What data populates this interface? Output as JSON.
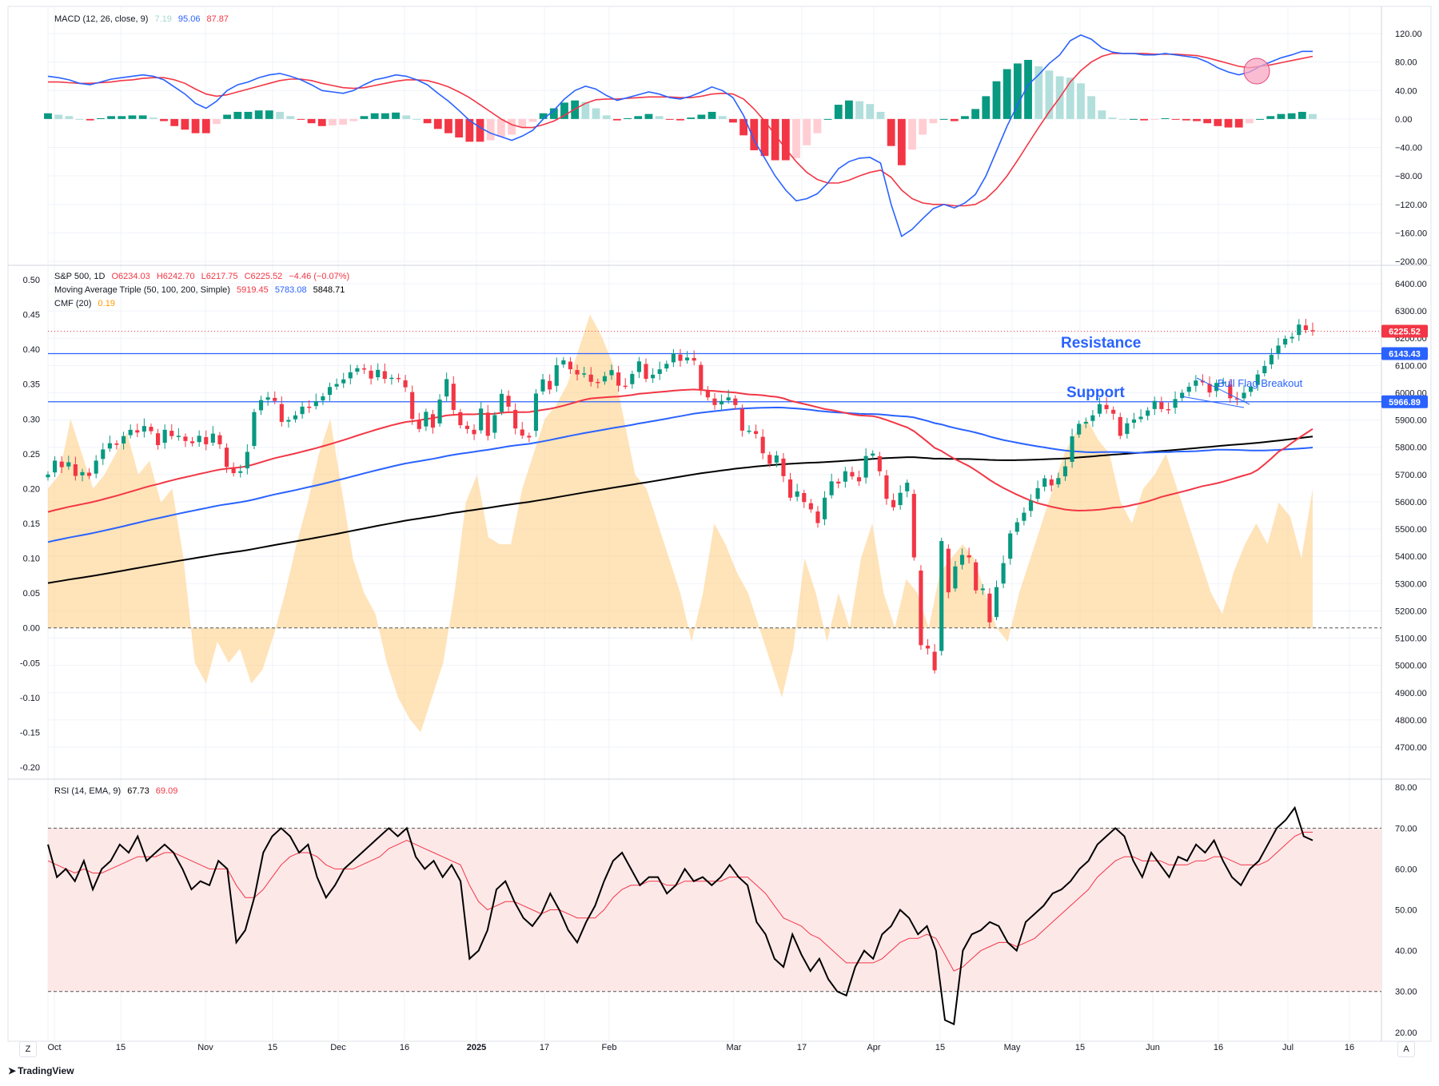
{
  "macd_panel": {
    "name": "MACD (12, 26, close, 9)",
    "histogram_value": "7.19",
    "macd_value": "95.06",
    "signal_value": "87.87",
    "axis_ticks": [
      "120.00",
      "80.00",
      "40.00",
      "0.00",
      "−40.00",
      "−80.00",
      "−120.00",
      "−160.00",
      "−200.00"
    ]
  },
  "price_panel": {
    "symbol_line": "S&P 500, 1D",
    "open": "O6234.03",
    "high": "H6242.70",
    "low": "L6217.75",
    "close": "C6225.52",
    "change": "−4.46 (−0.07%)",
    "ma_name": "Moving Average Triple (50, 100, 200, Simple)",
    "ma50": "5919.45",
    "ma100": "5783.08",
    "ma200": "5848.71",
    "cmf_name": "CMF (20)",
    "cmf_value": "0.19",
    "right_ticks": [
      "6400.00",
      "6300.00",
      "6200.00",
      "6100.00",
      "6000.00",
      "5900.00",
      "5800.00",
      "5700.00",
      "5600.00",
      "5500.00",
      "5400.00",
      "5300.00",
      "5200.00",
      "5100.00",
      "5000.00",
      "4900.00",
      "4800.00",
      "4700.00"
    ],
    "left_ticks": [
      "0.50",
      "0.45",
      "0.40",
      "0.35",
      "0.30",
      "0.25",
      "0.20",
      "0.15",
      "0.10",
      "0.05",
      "0.00",
      "-0.05",
      "-0.10",
      "-0.15",
      "-0.20"
    ],
    "price_badge": "6225.52",
    "resistance_badge": "6143.43",
    "support_badge": "5966.89",
    "resistance_label": "Resistance",
    "support_label": "Support",
    "flag_label": "Bull Flag Breakout"
  },
  "rsi_panel": {
    "name": "RSI (14, EMA, 9)",
    "rsi_value": "67.73",
    "ma_value": "69.09",
    "axis_ticks": [
      "80.00",
      "70.00",
      "60.00",
      "50.00",
      "40.00",
      "30.00",
      "20.00"
    ]
  },
  "date_axis": [
    "Oct",
    "15",
    "Nov",
    "15",
    "Dec",
    "16",
    "2025",
    "17",
    "Feb",
    "Mar",
    "17",
    "Apr",
    "15",
    "May",
    "15",
    "Jun",
    "16",
    "Jul",
    "16"
  ],
  "footer": {
    "brand": "TradingView",
    "left_button": "Z",
    "right_button": "A"
  },
  "colors": {
    "up": "#089981",
    "down": "#f23645",
    "ma50": "#f23645",
    "ma100": "#2962ff",
    "ma200": "#000000",
    "cmf_fill": "#ffcc80",
    "macd_line": "#2962ff",
    "signal_line": "#f23645",
    "rsi_line": "#000000",
    "rsi_ma": "#f23645",
    "rsi_band": "#fde8e8",
    "level_line": "#2962ff"
  },
  "chart_data": [
    {
      "type": "candlestick",
      "title": "S&P 500, 1D",
      "y_range": [
        4700,
        6400
      ],
      "levels": {
        "resistance": 6143.43,
        "support": 5966.89,
        "last": 6225.52
      },
      "closes": [
        5700,
        5751,
        5727,
        5745,
        5695,
        5709,
        5695,
        5751,
        5792,
        5815,
        5809,
        5841,
        5864,
        5854,
        5878,
        5859,
        5808,
        5864,
        5841,
        5842,
        5823,
        5815,
        5842,
        5811,
        5850,
        5811,
        5728,
        5705,
        5712,
        5783,
        5929,
        5973,
        5983,
        5970,
        5893,
        5900,
        5917,
        5949,
        5948,
        5969,
        5987,
        6021,
        6032,
        6049,
        6075,
        6090,
        6086,
        6052,
        6084,
        6051,
        6055,
        6050,
        6020,
        5904,
        5867,
        5930,
        5872,
        5975,
        6050,
        5937,
        5881,
        5867,
        5848,
        5942,
        5842,
        5918,
        5996,
        5949,
        5869,
        5843,
        5836,
        5997,
        6049,
        6012,
        6101,
        6119,
        6086,
        6067,
        6071,
        6040,
        6038,
        6061,
        6083,
        6026,
        6025,
        6069,
        6115,
        6051,
        6066,
        6086,
        6106,
        6144,
        6117,
        6129,
        6118,
        6013,
        5983,
        5955,
        5970,
        5983,
        5955,
        5861,
        5861,
        5849,
        5778,
        5739,
        5770,
        5694,
        5615,
        5638,
        5599,
        5572,
        5522,
        5615,
        5675,
        5667,
        5712,
        5693,
        5675,
        5768,
        5777,
        5712,
        5611,
        5580,
        5633,
        5670,
        5396,
        5074,
        5062,
        4982,
        5456,
        5268,
        5363,
        5405,
        5396,
        5275,
        5282,
        5158,
        5287,
        5375,
        5484,
        5525,
        5560,
        5604,
        5650,
        5686,
        5660,
        5687,
        5730,
        5840,
        5886,
        5893,
        5917,
        5958,
        5940,
        5923,
        5842,
        5888,
        5902,
        5912,
        5935,
        5970,
        5940,
        5939,
        5977,
        6000,
        6022,
        6045,
        6038,
        6001,
        6036,
        6039,
        5980,
        5976,
        6000,
        6022,
        6067,
        6098,
        6139,
        6173,
        6198,
        6205,
        6250,
        6230,
        6226
      ]
    },
    {
      "type": "line",
      "title": "MACD (12, 26, close, 9)",
      "y_range": [
        -200,
        120
      ],
      "series": [
        {
          "name": "MACD",
          "values": [
            60,
            58,
            55,
            50,
            48,
            52,
            56,
            58,
            60,
            62,
            60,
            55,
            45,
            35,
            22,
            15,
            25,
            40,
            48,
            52,
            58,
            62,
            64,
            60,
            55,
            48,
            40,
            38,
            36,
            40,
            48,
            55,
            58,
            62,
            60,
            55,
            48,
            36,
            25,
            12,
            -2,
            -12,
            -20,
            -25,
            -30,
            -24,
            -16,
            0,
            12,
            28,
            40,
            46,
            42,
            33,
            26,
            30,
            34,
            38,
            35,
            30,
            28,
            32,
            38,
            45,
            40,
            30,
            5,
            -30,
            -55,
            -80,
            -100,
            -115,
            -112,
            -105,
            -90,
            -70,
            -60,
            -55,
            -54,
            -62,
            -120,
            -165,
            -155,
            -140,
            -126,
            -120,
            -125,
            -118,
            -106,
            -80,
            -45,
            -10,
            20,
            48,
            62,
            78,
            90,
            110,
            118,
            112,
            100,
            94,
            92,
            92,
            90,
            90,
            92,
            90,
            88,
            86,
            80,
            72,
            66,
            62,
            66,
            74,
            80,
            86,
            90,
            95,
            95
          ]
        },
        {
          "name": "Signal",
          "values": [
            52,
            52,
            51,
            50,
            50,
            51,
            52,
            54,
            55,
            57,
            58,
            58,
            55,
            50,
            42,
            35,
            32,
            34,
            38,
            42,
            46,
            50,
            54,
            56,
            56,
            54,
            50,
            47,
            44,
            43,
            44,
            47,
            50,
            53,
            55,
            55,
            54,
            50,
            45,
            38,
            30,
            20,
            10,
            0,
            -8,
            -12,
            -12,
            -8,
            -3,
            5,
            14,
            22,
            27,
            28,
            28,
            29,
            30,
            31,
            31,
            31,
            30,
            30,
            32,
            35,
            36,
            35,
            28,
            14,
            -3,
            -22,
            -42,
            -60,
            -75,
            -85,
            -90,
            -90,
            -86,
            -80,
            -75,
            -72,
            -82,
            -100,
            -112,
            -118,
            -120,
            -120,
            -122,
            -122,
            -120,
            -112,
            -98,
            -80,
            -58,
            -35,
            -12,
            10,
            30,
            52,
            68,
            80,
            88,
            92,
            92,
            92,
            92,
            91,
            91,
            91,
            90,
            89,
            86,
            82,
            78,
            74,
            72,
            74,
            76,
            79,
            82,
            85,
            88
          ]
        }
      ]
    },
    {
      "type": "area",
      "title": "CMF (20)",
      "y_range": [
        -0.2,
        0.5
      ],
      "values": [
        0.2,
        0.22,
        0.3,
        0.25,
        0.2,
        0.22,
        0.25,
        0.28,
        0.22,
        0.24,
        0.18,
        0.2,
        0.1,
        -0.05,
        -0.08,
        -0.02,
        -0.05,
        -0.03,
        -0.08,
        -0.06,
        -0.01,
        0.05,
        0.12,
        0.18,
        0.25,
        0.3,
        0.2,
        0.1,
        0.05,
        0.02,
        -0.05,
        -0.1,
        -0.13,
        -0.15,
        -0.1,
        -0.05,
        0.05,
        0.18,
        0.22,
        0.13,
        0.12,
        0.12,
        0.2,
        0.25,
        0.3,
        0.32,
        0.35,
        0.4,
        0.45,
        0.42,
        0.38,
        0.3,
        0.22,
        0.2,
        0.15,
        0.1,
        0.05,
        -0.02,
        0.05,
        0.15,
        0.12,
        0.08,
        0.05,
        0.0,
        -0.05,
        -0.1,
        -0.03,
        0.1,
        0.05,
        -0.02,
        0.05,
        0.0,
        0.1,
        0.15,
        0.05,
        0.0,
        0.07,
        0.05,
        0.0,
        0.08,
        0.1,
        0.12,
        0.1,
        0.05,
        0.0,
        -0.02,
        0.05,
        0.1,
        0.15,
        0.2,
        0.25,
        0.28,
        0.3,
        0.27,
        0.25,
        0.18,
        0.15,
        0.2,
        0.22,
        0.25,
        0.2,
        0.15,
        0.1,
        0.05,
        0.02,
        0.08,
        0.12,
        0.15,
        0.12,
        0.18,
        0.16,
        0.1,
        0.2
      ]
    },
    {
      "type": "line",
      "title": "RSI (14, EMA, 9)",
      "y_range": [
        18,
        82
      ],
      "series": [
        {
          "name": "RSI",
          "values": [
            66,
            58,
            60,
            57,
            62,
            55,
            60,
            62,
            66,
            64,
            68,
            62,
            64,
            66,
            64,
            60,
            55,
            57,
            56,
            62,
            60,
            42,
            45,
            53,
            64,
            68,
            70,
            68,
            64,
            66,
            58,
            53,
            56,
            60,
            62,
            64,
            66,
            68,
            70,
            68,
            70,
            63,
            60,
            62,
            58,
            61,
            57,
            38,
            40,
            45,
            55,
            57,
            52,
            48,
            46,
            49,
            54,
            50,
            45,
            42,
            47,
            51,
            57,
            62,
            64,
            60,
            56,
            58,
            58,
            54,
            56,
            60,
            57,
            58,
            56,
            58,
            61,
            58,
            56,
            47,
            44,
            38,
            36,
            44,
            39,
            35,
            38,
            33,
            30,
            29,
            36,
            40,
            38,
            44,
            46,
            50,
            48,
            44,
            46,
            40,
            23,
            22,
            40,
            44,
            45,
            47,
            46,
            42,
            40,
            47,
            49,
            51,
            54,
            55,
            57,
            60,
            62,
            66,
            68,
            70,
            68,
            62,
            58,
            64,
            61,
            58,
            63,
            62,
            66,
            64,
            67,
            62,
            58,
            56,
            60,
            62,
            66,
            70,
            72,
            75,
            68,
            67
          ]
        },
        {
          "name": "RSI-based MA",
          "values": [
            62,
            61,
            60,
            59,
            60,
            59,
            59,
            60,
            61,
            62,
            63,
            63,
            63,
            64,
            64,
            63,
            62,
            61,
            60,
            60,
            60,
            56,
            53,
            53,
            55,
            58,
            61,
            63,
            64,
            64,
            63,
            61,
            60,
            60,
            60,
            61,
            62,
            63,
            65,
            66,
            67,
            66,
            65,
            64,
            63,
            62,
            61,
            56,
            52,
            50,
            51,
            52,
            52,
            51,
            50,
            49,
            50,
            50,
            49,
            48,
            48,
            48,
            50,
            53,
            55,
            56,
            56,
            57,
            57,
            56,
            56,
            57,
            57,
            57,
            57,
            57,
            58,
            58,
            58,
            56,
            54,
            51,
            48,
            47,
            46,
            44,
            43,
            41,
            39,
            37,
            37,
            37,
            37,
            38,
            40,
            42,
            43,
            43,
            44,
            43,
            39,
            35,
            36,
            38,
            40,
            41,
            42,
            42,
            41,
            42,
            43,
            45,
            47,
            49,
            51,
            53,
            55,
            58,
            60,
            62,
            63,
            63,
            62,
            62,
            62,
            61,
            61,
            61,
            62,
            62,
            63,
            63,
            62,
            61,
            61,
            61,
            62,
            64,
            66,
            68,
            69,
            69
          ]
        }
      ]
    }
  ]
}
